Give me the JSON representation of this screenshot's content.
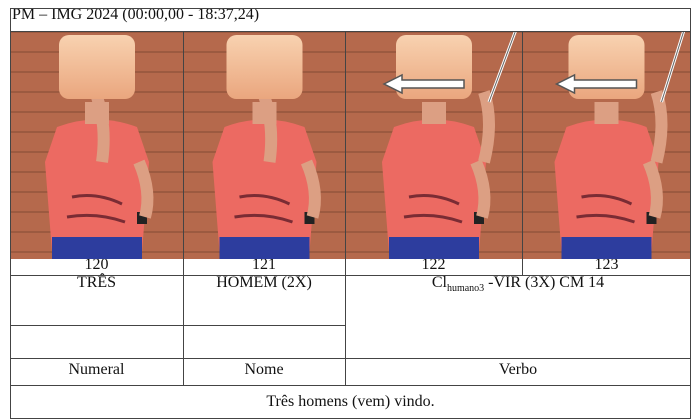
{
  "header": {
    "title": "PM – IMG 2024 (00:00,00 - 18:37,24)"
  },
  "frames": [
    "120",
    "121",
    "122",
    "123"
  ],
  "glosses": {
    "col1": "TRÊS",
    "col2": "HOMEM (2X)",
    "col3": {
      "base": "Cl",
      "sub": "humano3",
      "rest": " -VIR (3X) CM 14"
    }
  },
  "classes": [
    "Numeral",
    "Nome",
    "Verbo"
  ],
  "translation": "Três homens (vem) vindo."
}
